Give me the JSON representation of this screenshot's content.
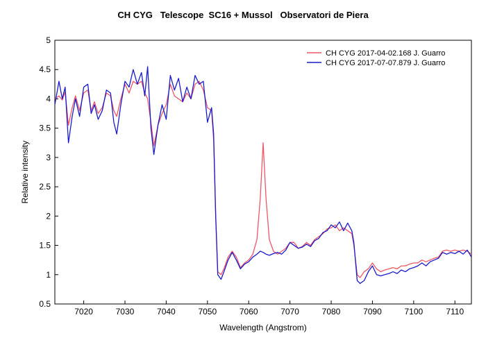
{
  "chart_data": {
    "type": "line",
    "title": "CH CYG   Telescope  SC16 + Mussol   Observatori de Piera",
    "xlabel": "Wavelength (Angstrom)",
    "ylabel": "Relative intensity",
    "xlim": [
      7013,
      7114
    ],
    "ylim": [
      0.5,
      5
    ],
    "x_ticks": [
      7020,
      7030,
      7040,
      7050,
      7060,
      7070,
      7080,
      7090,
      7100,
      7110
    ],
    "y_ticks": [
      0.5,
      1,
      1.5,
      2,
      2.5,
      3,
      3.5,
      4,
      4.5,
      5
    ],
    "y_tick_labels": [
      "0.5",
      "1",
      "1.5",
      "2",
      "2.5",
      "3",
      "3.5",
      "4",
      "4.5",
      "5"
    ],
    "grid": false,
    "legend_position": "top-right",
    "series": [
      {
        "name": "CH CYG  2017-04-02.168  J. Guarro",
        "color": "#ee5566",
        "points": [
          [
            7013.0,
            4.0
          ],
          [
            7014.0,
            4.05
          ],
          [
            7014.8,
            3.98
          ],
          [
            7015.5,
            4.12
          ],
          [
            7016.3,
            3.55
          ],
          [
            7017.2,
            3.85
          ],
          [
            7018.0,
            4.05
          ],
          [
            7019.0,
            3.8
          ],
          [
            7020.0,
            4.1
          ],
          [
            7021.0,
            4.15
          ],
          [
            7021.8,
            3.8
          ],
          [
            7022.6,
            3.95
          ],
          [
            7023.5,
            3.75
          ],
          [
            7024.5,
            3.85
          ],
          [
            7025.5,
            4.1
          ],
          [
            7026.5,
            4.05
          ],
          [
            7027.3,
            3.8
          ],
          [
            7028.0,
            3.7
          ],
          [
            7029.0,
            4.0
          ],
          [
            7030.0,
            4.25
          ],
          [
            7031.0,
            4.1
          ],
          [
            7032.0,
            4.3
          ],
          [
            7033.0,
            4.25
          ],
          [
            7034.0,
            4.3
          ],
          [
            7034.8,
            4.1
          ],
          [
            7035.5,
            4.0
          ],
          [
            7036.3,
            3.6
          ],
          [
            7037.0,
            3.2
          ],
          [
            7038.0,
            3.55
          ],
          [
            7039.0,
            3.75
          ],
          [
            7040.0,
            3.9
          ],
          [
            7041.0,
            4.25
          ],
          [
            7042.0,
            4.05
          ],
          [
            7043.0,
            4.0
          ],
          [
            7044.0,
            3.95
          ],
          [
            7045.0,
            4.1
          ],
          [
            7046.0,
            4.0
          ],
          [
            7047.0,
            4.25
          ],
          [
            7048.0,
            4.3
          ],
          [
            7049.0,
            4.15
          ],
          [
            7050.0,
            3.85
          ],
          [
            7051.0,
            3.8
          ],
          [
            7051.5,
            3.3
          ],
          [
            7052.0,
            2.0
          ],
          [
            7052.5,
            1.05
          ],
          [
            7053.3,
            1.0
          ],
          [
            7054.0,
            1.1
          ],
          [
            7055.0,
            1.3
          ],
          [
            7056.0,
            1.4
          ],
          [
            7057.0,
            1.3
          ],
          [
            7058.0,
            1.12
          ],
          [
            7059.0,
            1.2
          ],
          [
            7060.0,
            1.25
          ],
          [
            7061.0,
            1.35
          ],
          [
            7062.0,
            1.6
          ],
          [
            7062.8,
            2.3
          ],
          [
            7063.5,
            3.25
          ],
          [
            7064.2,
            2.3
          ],
          [
            7065.0,
            1.6
          ],
          [
            7066.0,
            1.4
          ],
          [
            7067.0,
            1.35
          ],
          [
            7068.0,
            1.4
          ],
          [
            7069.0,
            1.45
          ],
          [
            7070.0,
            1.55
          ],
          [
            7071.0,
            1.55
          ],
          [
            7072.0,
            1.45
          ],
          [
            7073.0,
            1.48
          ],
          [
            7074.0,
            1.55
          ],
          [
            7075.0,
            1.5
          ],
          [
            7076.0,
            1.6
          ],
          [
            7077.0,
            1.65
          ],
          [
            7078.0,
            1.7
          ],
          [
            7079.0,
            1.78
          ],
          [
            7080.0,
            1.8
          ],
          [
            7081.0,
            1.85
          ],
          [
            7082.0,
            1.75
          ],
          [
            7083.0,
            1.8
          ],
          [
            7084.0,
            1.75
          ],
          [
            7085.0,
            1.7
          ],
          [
            7085.5,
            1.5
          ],
          [
            7086.3,
            1.0
          ],
          [
            7087.0,
            0.95
          ],
          [
            7088.0,
            1.05
          ],
          [
            7089.0,
            1.1
          ],
          [
            7090.0,
            1.2
          ],
          [
            7091.0,
            1.1
          ],
          [
            7092.0,
            1.05
          ],
          [
            7093.0,
            1.08
          ],
          [
            7094.0,
            1.1
          ],
          [
            7095.0,
            1.12
          ],
          [
            7096.0,
            1.1
          ],
          [
            7097.0,
            1.15
          ],
          [
            7098.0,
            1.15
          ],
          [
            7099.0,
            1.18
          ],
          [
            7100.0,
            1.2
          ],
          [
            7101.0,
            1.2
          ],
          [
            7102.0,
            1.25
          ],
          [
            7103.0,
            1.22
          ],
          [
            7104.0,
            1.25
          ],
          [
            7105.0,
            1.28
          ],
          [
            7106.0,
            1.3
          ],
          [
            7107.0,
            1.4
          ],
          [
            7108.0,
            1.42
          ],
          [
            7109.0,
            1.4
          ],
          [
            7110.0,
            1.42
          ],
          [
            7111.0,
            1.4
          ],
          [
            7112.0,
            1.42
          ],
          [
            7113.0,
            1.4
          ],
          [
            7114.0,
            1.35
          ]
        ]
      },
      {
        "name": "CH CYG  2017-07-07.879  J. Guarro",
        "color": "#1a1acc",
        "points": [
          [
            7013.0,
            3.9
          ],
          [
            7014.0,
            4.3
          ],
          [
            7014.8,
            4.0
          ],
          [
            7015.5,
            4.2
          ],
          [
            7016.3,
            3.25
          ],
          [
            7017.2,
            3.7
          ],
          [
            7018.0,
            4.0
          ],
          [
            7019.0,
            3.7
          ],
          [
            7020.0,
            4.2
          ],
          [
            7021.0,
            4.25
          ],
          [
            7021.8,
            3.75
          ],
          [
            7022.6,
            3.9
          ],
          [
            7023.5,
            3.65
          ],
          [
            7024.5,
            3.8
          ],
          [
            7025.5,
            4.15
          ],
          [
            7026.5,
            4.1
          ],
          [
            7027.3,
            3.6
          ],
          [
            7028.0,
            3.4
          ],
          [
            7029.0,
            3.9
          ],
          [
            7030.0,
            4.3
          ],
          [
            7031.0,
            4.2
          ],
          [
            7032.0,
            4.5
          ],
          [
            7033.0,
            4.25
          ],
          [
            7034.0,
            4.45
          ],
          [
            7034.8,
            4.05
          ],
          [
            7035.5,
            4.55
          ],
          [
            7036.3,
            3.5
          ],
          [
            7037.0,
            3.05
          ],
          [
            7038.0,
            3.55
          ],
          [
            7039.0,
            3.9
          ],
          [
            7040.0,
            3.65
          ],
          [
            7041.0,
            4.4
          ],
          [
            7042.0,
            4.15
          ],
          [
            7043.0,
            4.35
          ],
          [
            7044.0,
            3.95
          ],
          [
            7045.0,
            4.2
          ],
          [
            7046.0,
            4.0
          ],
          [
            7047.0,
            4.4
          ],
          [
            7048.0,
            4.25
          ],
          [
            7049.0,
            4.3
          ],
          [
            7050.0,
            3.6
          ],
          [
            7051.0,
            3.85
          ],
          [
            7051.5,
            3.4
          ],
          [
            7052.0,
            2.0
          ],
          [
            7052.5,
            1.0
          ],
          [
            7053.3,
            0.92
          ],
          [
            7054.0,
            1.05
          ],
          [
            7055.0,
            1.25
          ],
          [
            7056.0,
            1.38
          ],
          [
            7057.0,
            1.25
          ],
          [
            7058.0,
            1.1
          ],
          [
            7059.0,
            1.18
          ],
          [
            7060.0,
            1.22
          ],
          [
            7061.0,
            1.3
          ],
          [
            7062.0,
            1.35
          ],
          [
            7062.8,
            1.4
          ],
          [
            7063.5,
            1.38
          ],
          [
            7064.2,
            1.35
          ],
          [
            7065.0,
            1.33
          ],
          [
            7066.0,
            1.36
          ],
          [
            7067.0,
            1.38
          ],
          [
            7068.0,
            1.35
          ],
          [
            7069.0,
            1.42
          ],
          [
            7070.0,
            1.55
          ],
          [
            7071.0,
            1.5
          ],
          [
            7072.0,
            1.45
          ],
          [
            7073.0,
            1.47
          ],
          [
            7074.0,
            1.52
          ],
          [
            7075.0,
            1.48
          ],
          [
            7076.0,
            1.58
          ],
          [
            7077.0,
            1.62
          ],
          [
            7078.0,
            1.72
          ],
          [
            7079.0,
            1.75
          ],
          [
            7080.0,
            1.85
          ],
          [
            7081.0,
            1.8
          ],
          [
            7082.0,
            1.9
          ],
          [
            7083.0,
            1.75
          ],
          [
            7084.0,
            1.88
          ],
          [
            7085.0,
            1.75
          ],
          [
            7085.5,
            1.55
          ],
          [
            7086.3,
            0.9
          ],
          [
            7087.0,
            0.85
          ],
          [
            7088.0,
            0.9
          ],
          [
            7089.0,
            1.05
          ],
          [
            7090.0,
            1.15
          ],
          [
            7091.0,
            1.0
          ],
          [
            7092.0,
            0.98
          ],
          [
            7093.0,
            1.0
          ],
          [
            7094.0,
            1.02
          ],
          [
            7095.0,
            1.05
          ],
          [
            7096.0,
            1.02
          ],
          [
            7097.0,
            1.08
          ],
          [
            7098.0,
            1.05
          ],
          [
            7099.0,
            1.1
          ],
          [
            7100.0,
            1.12
          ],
          [
            7101.0,
            1.15
          ],
          [
            7102.0,
            1.2
          ],
          [
            7103.0,
            1.15
          ],
          [
            7104.0,
            1.22
          ],
          [
            7105.0,
            1.25
          ],
          [
            7106.0,
            1.28
          ],
          [
            7107.0,
            1.38
          ],
          [
            7108.0,
            1.35
          ],
          [
            7109.0,
            1.38
          ],
          [
            7110.0,
            1.36
          ],
          [
            7111.0,
            1.4
          ],
          [
            7112.0,
            1.35
          ],
          [
            7113.0,
            1.42
          ],
          [
            7114.0,
            1.3
          ]
        ]
      }
    ]
  }
}
